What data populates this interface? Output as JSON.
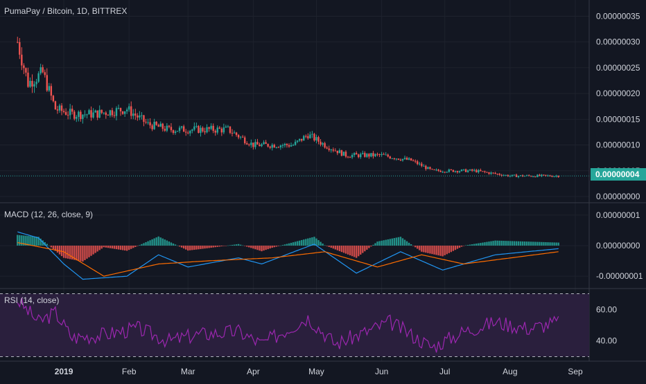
{
  "symbol_title": "PumaPay / Bitcoin, 1D, BITTREX",
  "colors": {
    "background": "#131722",
    "grid": "#1e222d",
    "separator": "#363a45",
    "up": "#26a69a",
    "down": "#ef5350",
    "macd_line": "#2196f3",
    "signal_line": "#ff6d00",
    "rsi_line": "#9c27b0",
    "rsi_band": "#2a1f3d",
    "text": "#d1d4dc"
  },
  "price_pane": {
    "last_price": "0.00000004",
    "y_ticks": [
      "0.00000035",
      "0.00000030",
      "0.00000025",
      "0.00000020",
      "0.00000015",
      "0.00000010",
      "0.00000005",
      "0.00000000"
    ]
  },
  "macd_pane": {
    "title": "MACD (12, 26, close, 9)",
    "y_ticks": [
      "0.00000001",
      "0.00000000",
      "-0.00000001"
    ]
  },
  "rsi_pane": {
    "title": "RSI (14, close)",
    "y_ticks": [
      "60.00",
      "40.00"
    ]
  },
  "x_ticks": [
    "2019",
    "Feb",
    "Mar",
    "Apr",
    "May",
    "Jun",
    "Jul",
    "Aug",
    "Sep"
  ],
  "chart_data": [
    {
      "type": "candlestick",
      "title": "PumaPay / Bitcoin, 1D, BITTREX",
      "y_unit": "BTC",
      "ylim": [
        0,
        3.6e-07
      ],
      "x_range": [
        "2018-12-10",
        "2019-09-01"
      ],
      "close_series": [
        {
          "date": "2018-12-10",
          "close": 3e-07
        },
        {
          "date": "2018-12-15",
          "close": 2.2e-07
        },
        {
          "date": "2018-12-22",
          "close": 2.4e-07
        },
        {
          "date": "2018-12-28",
          "close": 1.7e-07
        },
        {
          "date": "2019-01-05",
          "close": 1.6e-07
        },
        {
          "date": "2019-01-15",
          "close": 1.6e-07
        },
        {
          "date": "2019-01-31",
          "close": 1.7e-07
        },
        {
          "date": "2019-02-10",
          "close": 1.4e-07
        },
        {
          "date": "2019-02-20",
          "close": 1.3e-07
        },
        {
          "date": "2019-03-05",
          "close": 1.3e-07
        },
        {
          "date": "2019-03-20",
          "close": 1.3e-07
        },
        {
          "date": "2019-04-01",
          "close": 1e-07
        },
        {
          "date": "2019-04-20",
          "close": 1e-07
        },
        {
          "date": "2019-04-27",
          "close": 1.2e-07
        },
        {
          "date": "2019-05-05",
          "close": 1e-07
        },
        {
          "date": "2019-05-15",
          "close": 8e-08
        },
        {
          "date": "2019-06-01",
          "close": 8e-08
        },
        {
          "date": "2019-06-15",
          "close": 7e-08
        },
        {
          "date": "2019-06-25",
          "close": 5e-08
        },
        {
          "date": "2019-07-15",
          "close": 5e-08
        },
        {
          "date": "2019-08-01",
          "close": 4e-08
        },
        {
          "date": "2019-08-24",
          "close": 4e-08
        }
      ]
    },
    {
      "type": "line",
      "title": "MACD (12, 26, close, 9)",
      "ylim": [
        -1.2e-08,
        1.2e-08
      ],
      "series": [
        {
          "key": "macd",
          "values": [
            {
              "date": "2018-12-10",
              "y": 4.5e-09
            },
            {
              "date": "2018-12-20",
              "y": 2.5e-09
            },
            {
              "date": "2019-01-01",
              "y": -6e-09
            },
            {
              "date": "2019-01-10",
              "y": -1.1e-08
            },
            {
              "date": "2019-01-31",
              "y": -1e-08
            },
            {
              "date": "2019-02-15",
              "y": -3e-09
            },
            {
              "date": "2019-03-01",
              "y": -7e-09
            },
            {
              "date": "2019-03-25",
              "y": -4e-09
            },
            {
              "date": "2019-04-05",
              "y": -6e-09
            },
            {
              "date": "2019-04-30",
              "y": 5e-10
            },
            {
              "date": "2019-05-20",
              "y": -9e-09
            },
            {
              "date": "2019-06-10",
              "y": -2e-09
            },
            {
              "date": "2019-06-30",
              "y": -8e-09
            },
            {
              "date": "2019-07-25",
              "y": -3e-09
            },
            {
              "date": "2019-08-24",
              "y": -1e-09
            }
          ]
        },
        {
          "key": "signal",
          "values": [
            {
              "date": "2018-12-10",
              "y": 1e-09
            },
            {
              "date": "2019-01-01",
              "y": -2e-09
            },
            {
              "date": "2019-01-20",
              "y": -1e-08
            },
            {
              "date": "2019-02-15",
              "y": -6e-09
            },
            {
              "date": "2019-03-10",
              "y": -5e-09
            },
            {
              "date": "2019-04-10",
              "y": -4e-09
            },
            {
              "date": "2019-05-05",
              "y": -2e-09
            },
            {
              "date": "2019-05-30",
              "y": -7e-09
            },
            {
              "date": "2019-06-20",
              "y": -3e-09
            },
            {
              "date": "2019-07-10",
              "y": -6e-09
            },
            {
              "date": "2019-08-24",
              "y": -2e-09
            }
          ]
        }
      ]
    },
    {
      "type": "line",
      "title": "RSI (14, close)",
      "ylim": [
        28,
        72
      ],
      "bands": [
        30,
        70
      ],
      "series": [
        {
          "key": "rsi",
          "values": [
            {
              "date": "2018-12-10",
              "y": 66
            },
            {
              "date": "2018-12-20",
              "y": 52
            },
            {
              "date": "2018-12-28",
              "y": 58
            },
            {
              "date": "2019-01-05",
              "y": 42
            },
            {
              "date": "2019-01-20",
              "y": 44
            },
            {
              "date": "2019-02-05",
              "y": 48
            },
            {
              "date": "2019-02-20",
              "y": 40
            },
            {
              "date": "2019-03-05",
              "y": 44
            },
            {
              "date": "2019-03-25",
              "y": 46
            },
            {
              "date": "2019-04-05",
              "y": 38
            },
            {
              "date": "2019-04-27",
              "y": 55
            },
            {
              "date": "2019-05-10",
              "y": 38
            },
            {
              "date": "2019-05-25",
              "y": 46
            },
            {
              "date": "2019-06-05",
              "y": 52
            },
            {
              "date": "2019-06-25",
              "y": 36
            },
            {
              "date": "2019-07-10",
              "y": 46
            },
            {
              "date": "2019-07-25",
              "y": 52
            },
            {
              "date": "2019-08-10",
              "y": 48
            },
            {
              "date": "2019-08-24",
              "y": 52
            }
          ]
        }
      ]
    }
  ]
}
